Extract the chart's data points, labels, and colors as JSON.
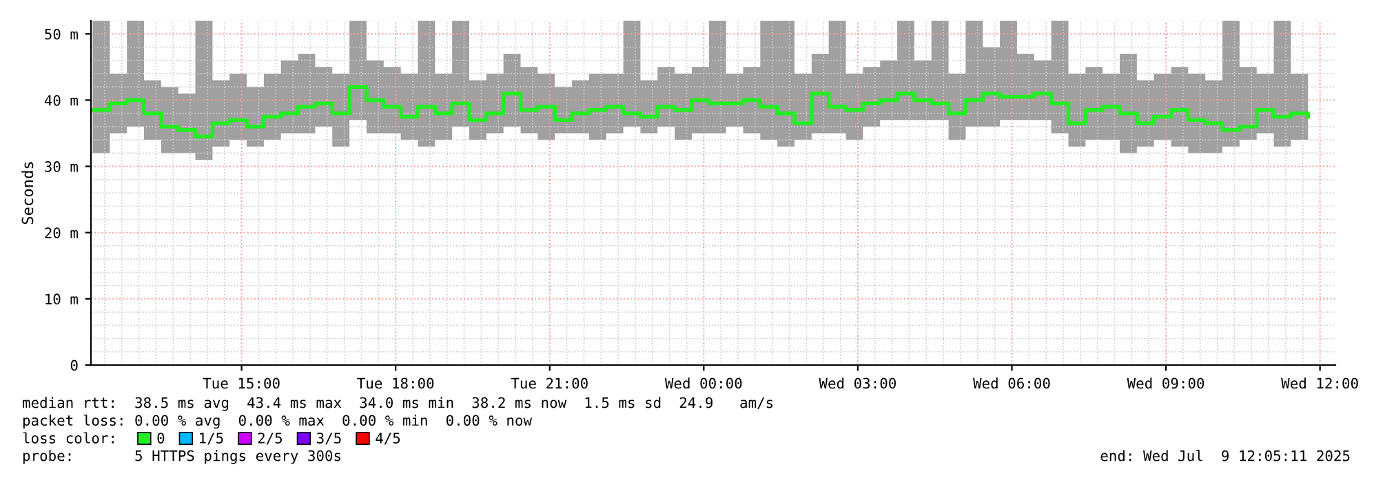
{
  "chart_data": {
    "type": "step",
    "ylabel": "Seconds",
    "xlim": [
      "2025-07-08T12:04",
      "2025-07-09T12:18"
    ],
    "xticks": [
      {
        "value": "2025-07-08T15:00",
        "label": "Tue 15:00"
      },
      {
        "value": "2025-07-08T18:00",
        "label": "Tue 18:00"
      },
      {
        "value": "2025-07-08T21:00",
        "label": "Tue 21:00"
      },
      {
        "value": "2025-07-09T00:00",
        "label": "Wed 00:00"
      },
      {
        "value": "2025-07-09T03:00",
        "label": "Wed 03:00"
      },
      {
        "value": "2025-07-09T06:00",
        "label": "Wed 06:00"
      },
      {
        "value": "2025-07-09T09:00",
        "label": "Wed 09:00"
      },
      {
        "value": "2025-07-09T12:00",
        "label": "Wed 12:00"
      }
    ],
    "ylim": [
      0,
      52
    ],
    "yticks": [
      0,
      {
        "value": 10,
        "label": "10 m"
      },
      {
        "value": 20,
        "label": "20 m"
      },
      {
        "value": 30,
        "label": "30 m"
      },
      {
        "value": 40,
        "label": "40 m"
      },
      {
        "value": 50,
        "label": "50 m"
      }
    ],
    "grid": true,
    "legend": "bottom",
    "legend_title": "loss color:",
    "x": [
      "2025-07-08T12:06",
      "2025-07-08T12:26",
      "2025-07-08T12:46",
      "2025-07-08T13:06",
      "2025-07-08T13:26",
      "2025-07-08T13:46",
      "2025-07-08T14:06",
      "2025-07-08T14:26",
      "2025-07-08T14:46",
      "2025-07-08T15:06",
      "2025-07-08T15:26",
      "2025-07-08T15:46",
      "2025-07-08T16:06",
      "2025-07-08T16:26",
      "2025-07-08T16:46",
      "2025-07-08T17:06",
      "2025-07-08T17:26",
      "2025-07-08T17:46",
      "2025-07-08T18:06",
      "2025-07-08T18:26",
      "2025-07-08T18:46",
      "2025-07-08T19:06",
      "2025-07-08T19:26",
      "2025-07-08T19:46",
      "2025-07-08T20:06",
      "2025-07-08T20:26",
      "2025-07-08T20:46",
      "2025-07-08T21:06",
      "2025-07-08T21:26",
      "2025-07-08T21:46",
      "2025-07-08T22:06",
      "2025-07-08T22:26",
      "2025-07-08T22:46",
      "2025-07-08T23:06",
      "2025-07-08T23:26",
      "2025-07-08T23:46",
      "2025-07-09T00:06",
      "2025-07-09T00:26",
      "2025-07-09T00:46",
      "2025-07-09T01:06",
      "2025-07-09T01:26",
      "2025-07-09T01:46",
      "2025-07-09T02:06",
      "2025-07-09T02:26",
      "2025-07-09T02:46",
      "2025-07-09T03:06",
      "2025-07-09T03:26",
      "2025-07-09T03:46",
      "2025-07-09T04:06",
      "2025-07-09T04:26",
      "2025-07-09T04:46",
      "2025-07-09T05:06",
      "2025-07-09T05:26",
      "2025-07-09T05:46",
      "2025-07-09T06:06",
      "2025-07-09T06:26",
      "2025-07-09T06:46",
      "2025-07-09T07:06",
      "2025-07-09T07:26",
      "2025-07-09T07:46",
      "2025-07-09T08:06",
      "2025-07-09T08:26",
      "2025-07-09T08:46",
      "2025-07-09T09:06",
      "2025-07-09T09:26",
      "2025-07-09T09:46",
      "2025-07-09T10:06",
      "2025-07-09T10:26",
      "2025-07-09T10:46",
      "2025-07-09T11:06",
      "2025-07-09T11:26",
      "2025-07-09T11:46"
    ],
    "series": [
      {
        "name": "0",
        "color": "#22ee22",
        "values": [
          38.5,
          39.5,
          40,
          38,
          36,
          35.5,
          34.5,
          36.5,
          37,
          36,
          37.5,
          38,
          39,
          39.5,
          38,
          42,
          40,
          39,
          37.5,
          39,
          38,
          39.5,
          37,
          38,
          41,
          38.5,
          39,
          37,
          38,
          38.5,
          39,
          38,
          37.5,
          39,
          38.5,
          40,
          39.5,
          39.5,
          40,
          39,
          38,
          36.5,
          41,
          39,
          38.5,
          39.5,
          40,
          41,
          40,
          39.5,
          38,
          40,
          41,
          40.5,
          40.5,
          41,
          39.5,
          36.5,
          38.5,
          39,
          38,
          36.5,
          37.5,
          38.5,
          37,
          36.5,
          35.5,
          36,
          38.5,
          37.5,
          38,
          37.5
        ],
        "lower": [
          32,
          35,
          36,
          34,
          32,
          32,
          31,
          33,
          34,
          33,
          34,
          35,
          35,
          36,
          33,
          37,
          35,
          35,
          34,
          33,
          34,
          36,
          34,
          35,
          36,
          35,
          34,
          35,
          35,
          34,
          35,
          36,
          35,
          36,
          34,
          35,
          35,
          36,
          35,
          34,
          33,
          34,
          35,
          35,
          34,
          36,
          37,
          37,
          37,
          37,
          34,
          36,
          36,
          37,
          37,
          37,
          35,
          33,
          34,
          34,
          32,
          33,
          34,
          33,
          32,
          32,
          33,
          34,
          35,
          33,
          34,
          34
        ],
        "upper": [
          52,
          44,
          52,
          43,
          42,
          41,
          52,
          43,
          44,
          42,
          44,
          46,
          47,
          45,
          44,
          52,
          46,
          45,
          44,
          52,
          44,
          52,
          43,
          44,
          47,
          45,
          44,
          42,
          43,
          44,
          44,
          52,
          43,
          45,
          44,
          45,
          52,
          44,
          45,
          52,
          52,
          44,
          47,
          52,
          44,
          45,
          46,
          52,
          46,
          52,
          44,
          52,
          48,
          52,
          47,
          46,
          52,
          44,
          45,
          44,
          47,
          43,
          44,
          45,
          44,
          43,
          52,
          45,
          44,
          52,
          44,
          42
        ]
      },
      {
        "name": "1/5",
        "color": "#00b8ff",
        "values": [
          null,
          null,
          null,
          null,
          null,
          null,
          null,
          null,
          null,
          null,
          null,
          null,
          null,
          null,
          null,
          null,
          null,
          null,
          null,
          null,
          null,
          null,
          null,
          null,
          null,
          null,
          null,
          null,
          null,
          null,
          null,
          null,
          null,
          null,
          null,
          null,
          null,
          null,
          null,
          null,
          null,
          null,
          null,
          null,
          null,
          null,
          null,
          null,
          null,
          null,
          null,
          null,
          null,
          null,
          null,
          null,
          null,
          null,
          null,
          null,
          null,
          null,
          null,
          null,
          null,
          null,
          null,
          null,
          null,
          null,
          null,
          null
        ]
      },
      {
        "name": "2/5",
        "color": "#cc00ff",
        "values": [
          null,
          null,
          null,
          null,
          null,
          null,
          null,
          null,
          null,
          null,
          null,
          null,
          null,
          null,
          null,
          null,
          null,
          null,
          null,
          null,
          null,
          null,
          null,
          null,
          null,
          null,
          null,
          null,
          null,
          null,
          null,
          null,
          null,
          null,
          null,
          null,
          null,
          null,
          null,
          null,
          null,
          null,
          null,
          null,
          null,
          null,
          null,
          null,
          null,
          null,
          null,
          null,
          null,
          null,
          null,
          null,
          null,
          null,
          null,
          null,
          null,
          null,
          null,
          null,
          null,
          null,
          null,
          null,
          null,
          null,
          null,
          null
        ]
      },
      {
        "name": "3/5",
        "color": "#7e00ff",
        "values": [
          null,
          null,
          null,
          null,
          null,
          null,
          null,
          null,
          null,
          null,
          null,
          null,
          null,
          null,
          null,
          null,
          null,
          null,
          null,
          null,
          null,
          null,
          null,
          null,
          null,
          null,
          null,
          null,
          null,
          null,
          null,
          null,
          null,
          null,
          null,
          null,
          null,
          null,
          null,
          null,
          null,
          null,
          null,
          null,
          null,
          null,
          null,
          null,
          null,
          null,
          null,
          null,
          null,
          null,
          null,
          null,
          null,
          null,
          null,
          null,
          null,
          null,
          null,
          null,
          null,
          null,
          null,
          null,
          null,
          null,
          null,
          null
        ]
      },
      {
        "name": "4/5",
        "color": "#ff0000",
        "values": [
          null,
          null,
          null,
          null,
          null,
          null,
          null,
          null,
          null,
          null,
          null,
          null,
          null,
          null,
          null,
          null,
          null,
          null,
          null,
          null,
          null,
          null,
          null,
          null,
          null,
          null,
          null,
          null,
          null,
          null,
          null,
          null,
          null,
          null,
          null,
          null,
          null,
          null,
          null,
          null,
          null,
          null,
          null,
          null,
          null,
          null,
          null,
          null,
          null,
          null,
          null,
          null,
          null,
          null,
          null,
          null,
          null,
          null,
          null,
          null,
          null,
          null,
          null,
          null,
          null,
          null,
          null,
          null,
          null,
          null,
          null,
          null
        ]
      }
    ],
    "annotations": [
      "median rtt:  38.5 ms avg  43.4 ms max  34.0 ms min  38.2 ms now  1.5 ms sd  24.9   am/s",
      "packet loss: 0.00 % avg  0.00 % max  0.00 % min  0.00 % now",
      "probe:       5 HTTPS pings every 300s",
      "end: Wed Jul  9 12:05:11 2025"
    ]
  }
}
